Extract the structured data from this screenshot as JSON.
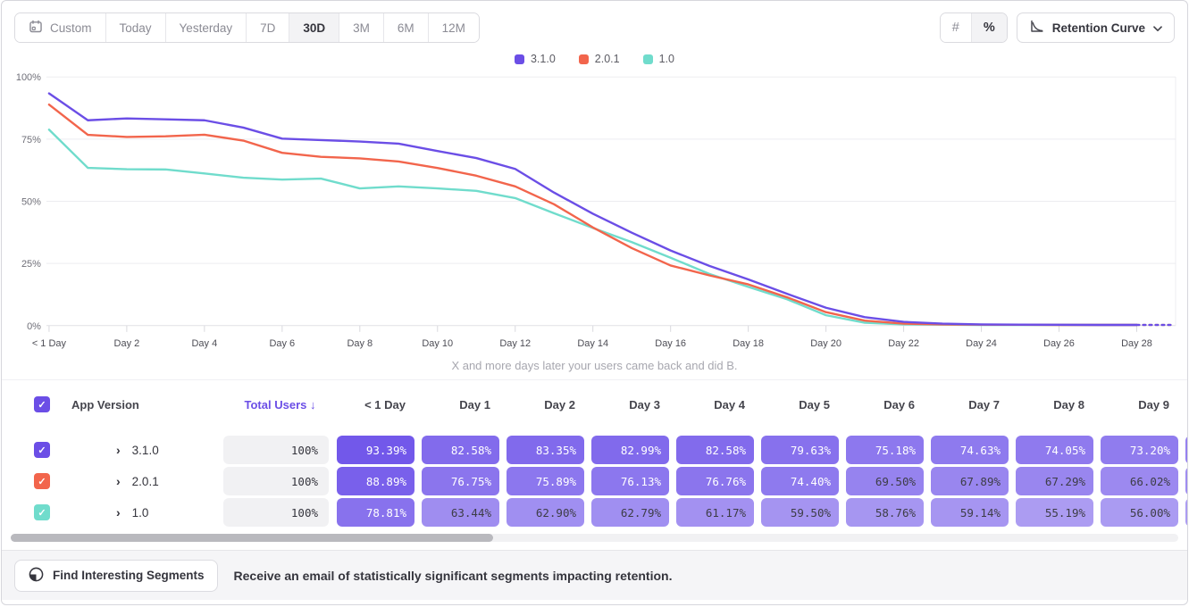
{
  "toolbar": {
    "date_ranges": [
      "Custom",
      "Today",
      "Yesterday",
      "7D",
      "30D",
      "3M",
      "6M",
      "12M"
    ],
    "active_range": "30D",
    "value_modes": [
      "#",
      "%"
    ],
    "active_value_mode": "%",
    "chart_type_label": "Retention Curve"
  },
  "chart_data": {
    "type": "line",
    "xlabel_note": "X and more days later your users came back and did B.",
    "ylim": [
      0,
      100
    ],
    "y_tick_values": [
      100,
      75,
      50,
      25,
      0
    ],
    "y_tick_labels": [
      "100%",
      "75%",
      "50%",
      "25%",
      "0%"
    ],
    "x_tick_days": [
      0,
      2,
      4,
      6,
      8,
      10,
      12,
      14,
      16,
      18,
      20,
      22,
      24,
      26,
      28
    ],
    "x_tick_labels": [
      "< 1 Day",
      "Day 2",
      "Day 4",
      "Day 6",
      "Day 8",
      "Day 10",
      "Day 12",
      "Day 14",
      "Day 16",
      "Day 18",
      "Day 20",
      "Day 22",
      "Day 24",
      "Day 26",
      "Day 28"
    ],
    "grid": true,
    "legend_position": "top-center",
    "dashed_from_day": 28,
    "series": [
      {
        "name": "3.1.0",
        "color": "#6B4EE6",
        "values": [
          93.39,
          82.58,
          83.35,
          82.99,
          82.58,
          79.63,
          75.18,
          74.63,
          74.05,
          73.2,
          70.2,
          67.4,
          63.0,
          53.5,
          45.0,
          37.4,
          30.2,
          24.0,
          18.6,
          12.8,
          7.2,
          3.4,
          1.5,
          0.8,
          0.5,
          0.4,
          0.35,
          0.3,
          0.3,
          0.3
        ]
      },
      {
        "name": "2.0.1",
        "color": "#F2654C",
        "values": [
          88.89,
          76.75,
          75.89,
          76.13,
          76.76,
          74.4,
          69.5,
          67.89,
          67.29,
          66.02,
          63.4,
          60.3,
          56.0,
          48.8,
          39.5,
          31.2,
          24.2,
          20.2,
          16.6,
          11.4,
          5.4,
          2.0,
          0.8,
          0.5,
          0.4,
          0.35,
          0.3,
          0.3,
          0.3,
          0.3
        ]
      },
      {
        "name": "1.0",
        "color": "#70DCCC",
        "values": [
          78.81,
          63.44,
          62.9,
          62.79,
          61.17,
          59.5,
          58.76,
          59.14,
          55.19,
          56.0,
          55.2,
          54.2,
          51.3,
          45.2,
          39.3,
          33.6,
          27.3,
          20.8,
          15.6,
          10.6,
          4.2,
          1.2,
          0.5,
          0.4,
          0.3,
          0.3,
          0.3,
          0.3,
          0.3,
          0.3
        ]
      }
    ]
  },
  "table": {
    "select_all_checked": true,
    "header_checkbox_color": "#6B4EE6",
    "app_version_header": "App Version",
    "total_users_header": "Total Users",
    "sort_arrow": "↓",
    "sort_header_color": "#6B4EE6",
    "day_headers": [
      "< 1 Day",
      "Day 1",
      "Day 2",
      "Day 3",
      "Day 4",
      "Day 5",
      "Day 6",
      "Day 7",
      "Day 8",
      "Day 9"
    ],
    "cell_base_rgb": [
      104,
      76,
      232
    ],
    "rows": [
      {
        "name": "3.1.0",
        "color": "#6B4EE6",
        "checked": true,
        "total_users": "100%",
        "retention": [
          93.39,
          82.58,
          83.35,
          82.99,
          82.58,
          79.63,
          75.18,
          74.63,
          74.05,
          73.2
        ]
      },
      {
        "name": "2.0.1",
        "color": "#F2654C",
        "checked": true,
        "total_users": "100%",
        "retention": [
          88.89,
          76.75,
          75.89,
          76.13,
          76.76,
          74.4,
          69.5,
          67.89,
          67.29,
          66.02
        ]
      },
      {
        "name": "1.0",
        "color": "#70DCCC",
        "checked": true,
        "total_users": "100%",
        "retention": [
          78.81,
          63.44,
          62.9,
          62.79,
          61.17,
          59.5,
          58.76,
          59.14,
          55.19,
          56.0
        ]
      }
    ]
  },
  "footer": {
    "button_label": "Find Interesting Segments",
    "message": "Receive an email of statistically significant segments impacting retention."
  }
}
